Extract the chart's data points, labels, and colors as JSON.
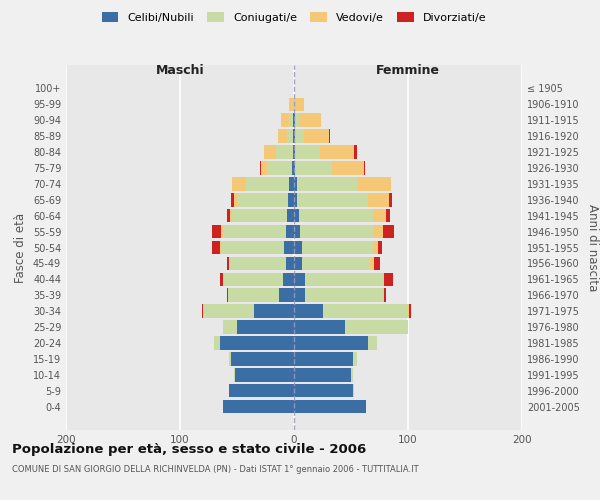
{
  "age_groups": [
    "0-4",
    "5-9",
    "10-14",
    "15-19",
    "20-24",
    "25-29",
    "30-34",
    "35-39",
    "40-44",
    "45-49",
    "50-54",
    "55-59",
    "60-64",
    "65-69",
    "70-74",
    "75-79",
    "80-84",
    "85-89",
    "90-94",
    "95-99",
    "100+"
  ],
  "birth_years": [
    "2001-2005",
    "1996-2000",
    "1991-1995",
    "1986-1990",
    "1981-1985",
    "1976-1980",
    "1971-1975",
    "1966-1970",
    "1961-1965",
    "1956-1960",
    "1951-1955",
    "1946-1950",
    "1941-1945",
    "1936-1940",
    "1931-1935",
    "1926-1930",
    "1921-1925",
    "1916-1920",
    "1911-1915",
    "1906-1910",
    "≤ 1905"
  ],
  "colors": {
    "celibi": "#3a6ea5",
    "coniugati": "#c8dba5",
    "vedovi": "#f5c878",
    "divorziati": "#cc2222"
  },
  "males": {
    "celibi": [
      62,
      57,
      52,
      55,
      65,
      50,
      35,
      13,
      10,
      7,
      9,
      7,
      6,
      5,
      4,
      2,
      1,
      1,
      1,
      0,
      0
    ],
    "coniugati": [
      0,
      0,
      1,
      2,
      5,
      12,
      45,
      45,
      52,
      50,
      55,
      55,
      48,
      45,
      38,
      22,
      15,
      5,
      3,
      1,
      0
    ],
    "vedovi": [
      0,
      0,
      0,
      0,
      0,
      0,
      0,
      0,
      0,
      0,
      1,
      2,
      2,
      3,
      12,
      5,
      10,
      8,
      7,
      3,
      0
    ],
    "divorziati": [
      0,
      0,
      0,
      0,
      0,
      0,
      1,
      1,
      3,
      2,
      7,
      8,
      3,
      2,
      0,
      1,
      0,
      0,
      0,
      0,
      0
    ]
  },
  "females": {
    "nubili": [
      63,
      52,
      50,
      52,
      65,
      45,
      25,
      10,
      10,
      7,
      7,
      5,
      4,
      3,
      3,
      1,
      1,
      1,
      1,
      0,
      0
    ],
    "coniugate": [
      0,
      1,
      2,
      3,
      8,
      55,
      75,
      68,
      68,
      60,
      62,
      65,
      65,
      62,
      52,
      32,
      22,
      8,
      3,
      1,
      0
    ],
    "vedove": [
      0,
      0,
      0,
      0,
      0,
      0,
      1,
      1,
      1,
      3,
      5,
      8,
      12,
      18,
      30,
      28,
      30,
      22,
      20,
      8,
      0
    ],
    "divorziate": [
      0,
      0,
      0,
      0,
      0,
      0,
      2,
      2,
      8,
      5,
      3,
      10,
      3,
      3,
      0,
      1,
      2,
      1,
      0,
      0,
      0
    ]
  },
  "xlim": 200,
  "background_color": "#f0f0f0",
  "plot_bg": "#e8e8e8",
  "grid_color": "#ffffff",
  "title": "Popolazione per età, sesso e stato civile - 2006",
  "subtitle": "COMUNE DI SAN GIORGIO DELLA RICHINVELDA (PN) - Dati ISTAT 1° gennaio 2006 - TUTTITALIA.IT",
  "ylabel": "Fasce di età",
  "ylabel_right": "Anni di nascita"
}
